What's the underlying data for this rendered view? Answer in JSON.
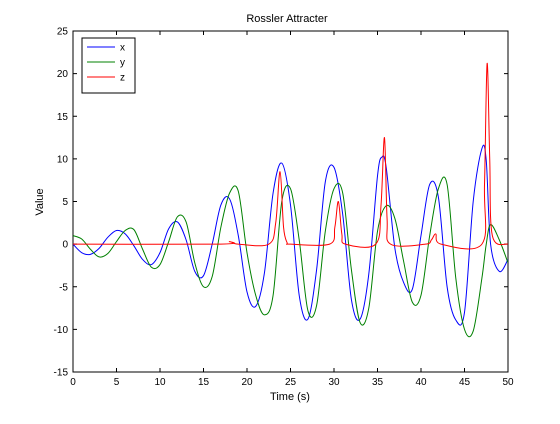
{
  "chart_data": {
    "type": "line",
    "title": "Rossler Attracter",
    "xlabel": "Time (s)",
    "ylabel": "Value",
    "xlim": [
      0,
      50
    ],
    "ylim": [
      -15,
      25
    ],
    "x_ticks": [
      0,
      5,
      10,
      15,
      20,
      25,
      30,
      35,
      40,
      45,
      50
    ],
    "y_ticks": [
      -15,
      -10,
      -5,
      0,
      5,
      10,
      15,
      20,
      25
    ],
    "grid": false,
    "legend_position": "top-left",
    "series": [
      {
        "name": "x",
        "color": "#0000ff",
        "x": [
          0,
          1,
          2,
          3,
          4,
          5,
          6,
          7,
          8,
          9,
          10,
          11,
          12,
          13,
          14,
          15,
          16,
          17,
          18,
          19,
          20,
          21,
          22,
          23,
          24,
          25,
          26,
          27,
          28,
          29,
          30,
          31,
          32,
          33,
          34,
          35,
          35.5,
          36,
          37,
          38,
          39,
          40,
          41,
          42,
          43,
          44,
          45,
          46,
          47,
          47.5,
          48,
          49,
          50
        ],
        "values": [
          0,
          -1,
          -1.2,
          -0.5,
          0.8,
          1.6,
          1.2,
          -0.2,
          -1.8,
          -2.4,
          -1,
          1.8,
          2.6,
          0.5,
          -3.2,
          -3.7,
          0,
          4.6,
          5.3,
          1,
          -5.6,
          -7.3,
          -3.4,
          6,
          9.5,
          4.6,
          -6,
          -8.8,
          -3,
          7.3,
          9,
          3.5,
          -6.5,
          -8.8,
          -3.5,
          8,
          10.2,
          9,
          -0.5,
          -4.5,
          -5.3,
          1,
          7,
          5.5,
          -5,
          -8.9,
          -8,
          5,
          11.2,
          9.8,
          0,
          -3.2,
          -1.8
        ]
      },
      {
        "name": "y",
        "color": "#008000",
        "x": [
          0,
          1,
          2,
          3,
          4,
          5,
          6,
          7,
          8,
          9,
          10,
          11,
          12,
          13,
          14,
          15,
          16,
          17,
          18,
          19,
          20,
          21,
          22,
          23,
          24,
          25,
          26,
          27,
          28,
          29,
          30,
          31,
          32,
          33,
          34,
          35,
          36,
          37,
          38,
          39,
          40,
          41,
          42,
          43,
          44,
          45,
          46,
          47,
          47.5,
          48,
          49,
          50
        ],
        "values": [
          1,
          0.6,
          -0.6,
          -1.5,
          -1.1,
          0.3,
          1.6,
          1.7,
          -0.6,
          -2.7,
          -2.4,
          0.3,
          3.2,
          2.6,
          -2.2,
          -5,
          -3.8,
          2,
          6,
          6.2,
          -1,
          -6,
          -8.3,
          -6,
          5,
          6.5,
          0.5,
          -7.8,
          -7.2,
          1.5,
          6.5,
          6,
          -3,
          -9.2,
          -7.5,
          1.5,
          4.5,
          3,
          -2,
          -6.8,
          -6,
          1,
          6.5,
          7,
          -4,
          -10,
          -10.2,
          -4,
          0,
          2.3,
          0.5,
          -2.2
        ]
      },
      {
        "name": "z",
        "color": "#ff0000",
        "x": [
          0,
          17,
          18,
          19,
          22.5,
          23.3,
          23.8,
          24.2,
          24.6,
          25,
          29.5,
          30.1,
          30.5,
          30.9,
          31.3,
          34.8,
          35.4,
          35.8,
          36.1,
          36.5,
          40.5,
          41.2,
          41.7,
          42.3,
          47,
          47.3,
          47.6,
          47.9,
          48.2,
          50
        ],
        "values": [
          0,
          0,
          0.3,
          0,
          0,
          2.5,
          8.5,
          2,
          0.2,
          0,
          0,
          2,
          5,
          1.2,
          0,
          0,
          4.5,
          12.5,
          3,
          0,
          0,
          0.5,
          1.2,
          0,
          0,
          7,
          21.2,
          10,
          1,
          0
        ]
      }
    ]
  }
}
